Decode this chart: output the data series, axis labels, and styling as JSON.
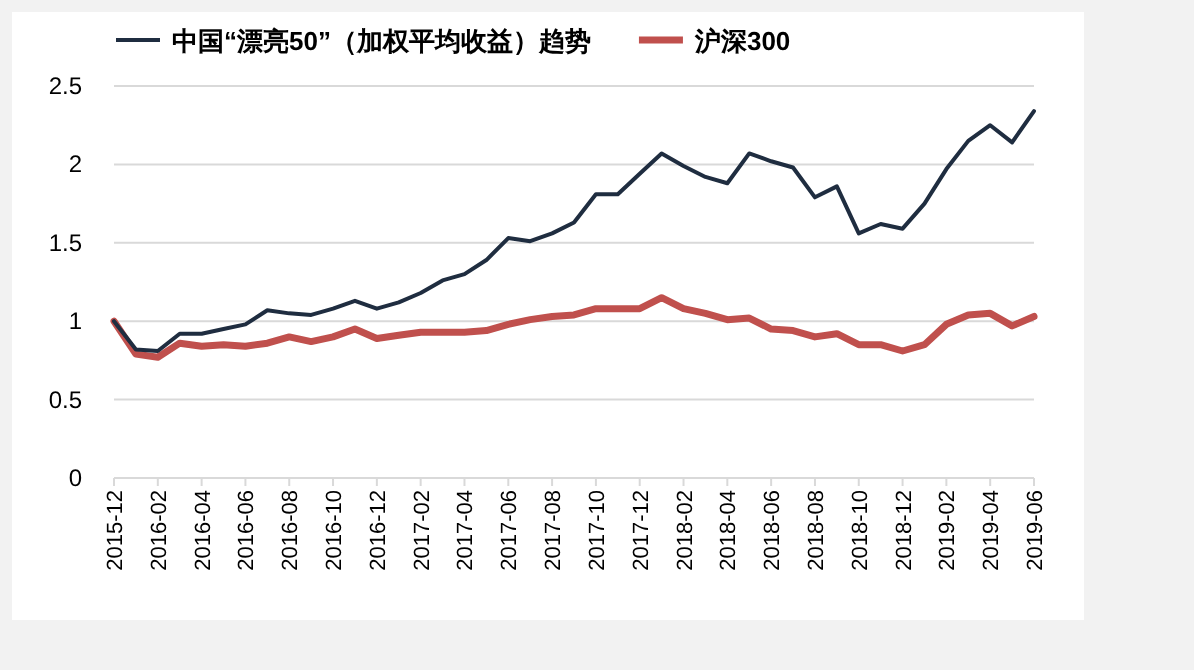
{
  "chart_data": {
    "type": "line",
    "categories": [
      "2015-12",
      null,
      "2016-02",
      null,
      "2016-04",
      null,
      "2016-06",
      null,
      "2016-08",
      null,
      "2016-10",
      null,
      "2016-12",
      null,
      "2017-02",
      null,
      "2017-04",
      null,
      "2017-06",
      null,
      "2017-08",
      null,
      "2017-10",
      null,
      "2017-12",
      null,
      "2018-02",
      null,
      "2018-04",
      null,
      "2018-06",
      null,
      "2018-08",
      null,
      "2018-10",
      null,
      "2018-12",
      null,
      "2019-02",
      null,
      "2019-04",
      null,
      "2019-06"
    ],
    "series": [
      {
        "name": "中国“漂亮50”（加权平均收益）趋势",
        "color": "#1f2d40",
        "values": [
          1.0,
          0.82,
          0.81,
          0.92,
          0.92,
          0.95,
          0.98,
          1.07,
          1.05,
          1.04,
          1.08,
          1.13,
          1.08,
          1.12,
          1.18,
          1.26,
          1.3,
          1.39,
          1.53,
          1.51,
          1.56,
          1.63,
          1.81,
          1.81,
          1.94,
          2.07,
          1.99,
          1.92,
          1.88,
          2.07,
          2.02,
          1.98,
          1.79,
          1.86,
          1.56,
          1.62,
          1.59,
          1.75,
          1.97,
          2.15,
          2.25,
          2.14,
          2.34
        ]
      },
      {
        "name": "沪深300",
        "color": "#c0504d",
        "values": [
          1.0,
          0.79,
          0.77,
          0.86,
          0.84,
          0.85,
          0.84,
          0.86,
          0.9,
          0.87,
          0.9,
          0.95,
          0.89,
          0.91,
          0.93,
          0.93,
          0.93,
          0.94,
          0.98,
          1.01,
          1.03,
          1.04,
          1.08,
          1.08,
          1.08,
          1.15,
          1.08,
          1.05,
          1.01,
          1.02,
          0.95,
          0.94,
          0.9,
          0.92,
          0.85,
          0.85,
          0.81,
          0.85,
          0.98,
          1.04,
          1.05,
          0.97,
          1.03
        ]
      }
    ],
    "ylim": [
      0,
      2.5
    ],
    "yticks": [
      0,
      0.5,
      1,
      1.5,
      2,
      2.5
    ],
    "grid": "y",
    "legend": "top",
    "marker": "none",
    "line_style": "solid"
  }
}
